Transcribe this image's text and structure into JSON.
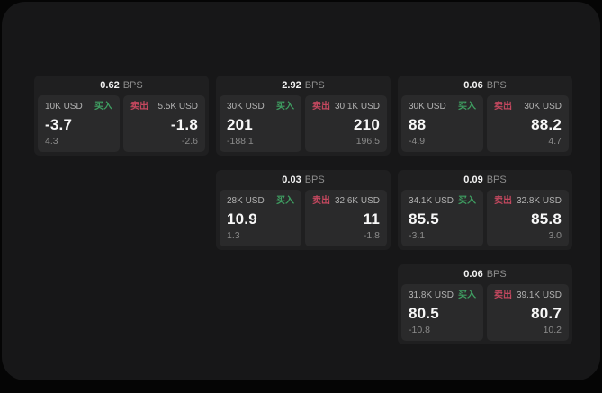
{
  "labels": {
    "bps": "BPS",
    "buy": "买入",
    "sell": "卖出"
  },
  "colors": {
    "buy_green": "#3f9f62",
    "sell_red": "#c4485f",
    "window_bg": "#171718",
    "card_bg": "#1f1f20",
    "panel_bg": "#2a2a2b",
    "outer_bg": "#050505"
  },
  "cards": [
    {
      "bps": "0.62",
      "buy": {
        "amount": "10K USD",
        "value": "-3.7",
        "delta": "4.3"
      },
      "sell": {
        "amount": "5.5K USD",
        "value": "-1.8",
        "delta": "-2.6"
      }
    },
    {
      "bps": "2.92",
      "buy": {
        "amount": "30K USD",
        "value": "201",
        "delta": "-188.1"
      },
      "sell": {
        "amount": "30.1K USD",
        "value": "210",
        "delta": "196.5"
      }
    },
    {
      "bps": "0.06",
      "buy": {
        "amount": "30K USD",
        "value": "88",
        "delta": "-4.9"
      },
      "sell": {
        "amount": "30K USD",
        "value": "88.2",
        "delta": "4.7"
      }
    },
    {
      "bps": "0.03",
      "buy": {
        "amount": "28K USD",
        "value": "10.9",
        "delta": "1.3"
      },
      "sell": {
        "amount": "32.6K USD",
        "value": "11",
        "delta": "-1.8"
      }
    },
    {
      "bps": "0.09",
      "buy": {
        "amount": "34.1K USD",
        "value": "85.5",
        "delta": "-3.1"
      },
      "sell": {
        "amount": "32.8K USD",
        "value": "85.8",
        "delta": "3.0"
      }
    },
    {
      "bps": "0.06",
      "buy": {
        "amount": "31.8K USD",
        "value": "80.5",
        "delta": "-10.8"
      },
      "sell": {
        "amount": "39.1K USD",
        "value": "80.7",
        "delta": "10.2"
      }
    }
  ]
}
